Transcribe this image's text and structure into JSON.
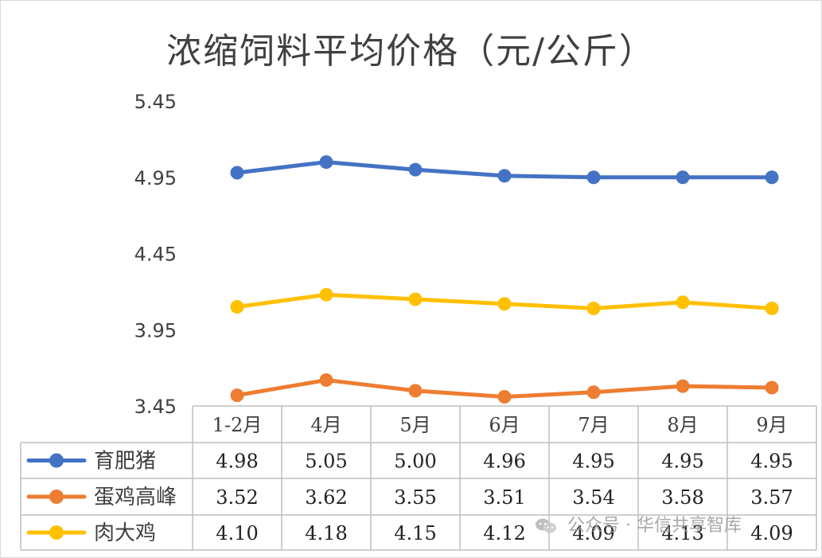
{
  "chart_data": {
    "type": "line",
    "title": "浓缩饲料平均价格（元/公斤）",
    "categories": [
      "1-2月",
      "4月",
      "5月",
      "6月",
      "7月",
      "8月",
      "9月"
    ],
    "ylim": [
      3.45,
      5.45
    ],
    "yticks": [
      "5.45",
      "4.95",
      "4.45",
      "3.95",
      "3.45"
    ],
    "grid": false,
    "legend": "data-table",
    "series": [
      {
        "name": "育肥猪",
        "color": "#4472c4",
        "values": [
          4.98,
          5.05,
          5.0,
          4.96,
          4.95,
          4.95,
          4.95
        ],
        "labels": [
          "4.98",
          "5.05",
          "5.00",
          "4.96",
          "4.95",
          "4.95",
          "4.95"
        ]
      },
      {
        "name": "蛋鸡高峰",
        "color": "#ed7d31",
        "values": [
          3.52,
          3.62,
          3.55,
          3.51,
          3.54,
          3.58,
          3.57
        ],
        "labels": [
          "3.52",
          "3.62",
          "3.55",
          "3.51",
          "3.54",
          "3.58",
          "3.57"
        ]
      },
      {
        "name": "肉大鸡",
        "color": "#ffc000",
        "values": [
          4.1,
          4.18,
          4.15,
          4.12,
          4.09,
          4.13,
          4.09
        ],
        "labels": [
          "4.10",
          "4.18",
          "4.15",
          "4.12",
          "4.09",
          "4.13",
          "4.09"
        ]
      }
    ]
  },
  "watermark": {
    "text": "公众号 · 华信共享智库",
    "icon": "wechat-icon"
  }
}
